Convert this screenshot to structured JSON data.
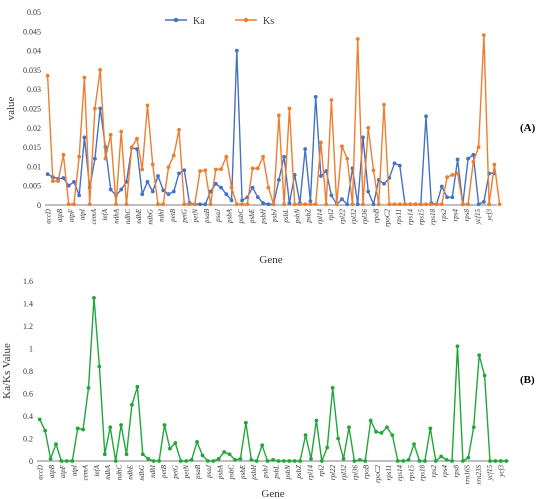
{
  "colors": {
    "ka": "#4472C4",
    "ks": "#ED7D31",
    "ratio": "#21A63A",
    "axis": "#7f7f7f"
  },
  "panelA": {
    "label": "(A)",
    "chart_data": {
      "type": "line",
      "xlabel": "Gene",
      "ylabel": "value",
      "ylim": [
        0,
        0.05
      ],
      "yticks": [
        "0",
        "0.005",
        "0.01",
        "0.015",
        "0.02",
        "0.025",
        "0.03",
        "0.035",
        "0.04",
        "0.045",
        "0.05"
      ],
      "legend_placement": "top",
      "tick_labels": [
        "accD",
        "atpB",
        "atpF",
        "atpI",
        "cemA",
        "infA",
        "ndhA",
        "ndhC",
        "ndhE",
        "ndhG",
        "ndhI",
        "petB",
        "petG",
        "petN",
        "psaB",
        "psaJ",
        "psbA",
        "psbC",
        "psbE",
        "psbH",
        "psbJ",
        "psbL",
        "psbN",
        "psbZ",
        "rpl14",
        "rpl2",
        "rpl22",
        "rpl32",
        "rpl36",
        "rpoB",
        "rpoC2",
        "rps11",
        "rps14",
        "rps15",
        "rps18",
        "rps2",
        "rps4",
        "rps8",
        "ycf15",
        "ycf3"
      ],
      "series": [
        {
          "name": "Ka",
          "values": [
            0.008,
            0.0072,
            0.0068,
            0.007,
            0.005,
            0.006,
            0.0025,
            0.0175,
            0.0045,
            0.012,
            0.025,
            0.015,
            0.004,
            0.0025,
            0.004,
            0.006,
            0.0148,
            0.0145,
            0.0028,
            0.006,
            0.0035,
            0.0075,
            0.0038,
            0.0028,
            0.0035,
            0.0082,
            0.009,
            0.0005,
            0.0002,
            0.0002,
            0.0002,
            0.0035,
            0.0055,
            0.0045,
            0.0028,
            0.0012,
            0.04,
            0.0012,
            0.002,
            0.0045,
            0.002,
            0.0005,
            0.0002,
            0.0002,
            0.0065,
            0.0125,
            0.0005,
            0.0078,
            0.0005,
            0.0145,
            0.001,
            0.028,
            0.0075,
            0.0088,
            0.0025,
            0.0002,
            0.0015,
            0.0002,
            0.0095,
            0.0002,
            0.0175,
            0.0035,
            0.0002,
            0.0065,
            0.0055,
            0.007,
            0.0108,
            0.0102,
            0.0002,
            0.0002,
            0.0002,
            0.0002,
            0.023,
            0.0005,
            0.0002,
            0.0048,
            0.002,
            0.002,
            0.0118,
            0.0002,
            0.012,
            0.013,
            0.0002,
            0.0008,
            0.0082,
            0.0082
          ]
        },
        {
          "name": "Ks",
          "values": [
            0.0335,
            0.0062,
            0.0062,
            0.013,
            0.0002,
            0.0002,
            0.0125,
            0.033,
            0.0002,
            0.025,
            0.035,
            0.012,
            0.0182,
            0.0002,
            0.019,
            0.0002,
            0.015,
            0.0172,
            0.0092,
            0.0258,
            0.0105,
            0.0002,
            0.0002,
            0.0098,
            0.0128,
            0.0195,
            0.0002,
            0.0002,
            0.0002,
            0.0088,
            0.009,
            0.0002,
            0.0092,
            0.0093,
            0.0125,
            0.0045,
            0.0002,
            0.0002,
            0.0002,
            0.0095,
            0.0095,
            0.0125,
            0.0045,
            0.0002,
            0.0232,
            0.0002,
            0.025,
            0.0002,
            0.0002,
            0.0002,
            0.0002,
            0.0002,
            0.0162,
            0.0002,
            0.0272,
            0.0002,
            0.0152,
            0.012,
            0.0002,
            0.043,
            0.0002,
            0.02,
            0.009,
            0.0002,
            0.026,
            0.0002,
            0.0002,
            0.0002,
            0.0002,
            0.0002,
            0.0002,
            0.0002,
            0.0002,
            0.0002,
            0.0002,
            0.0002,
            0.0072,
            0.0078,
            0.0082,
            0.0002,
            0.0002,
            0.0112,
            0.015,
            0.044,
            0.0002,
            0.0105,
            0.0002
          ]
        }
      ]
    }
  },
  "panelB": {
    "label": "(B)",
    "chart_data": {
      "type": "line",
      "xlabel": "Gene",
      "ylabel": "Ka/Ks Value",
      "ylim": [
        0,
        1.6
      ],
      "yticks": [
        "0",
        "0.2",
        "0.4",
        "0.6",
        "0.8",
        "1",
        "1.2",
        "1.4",
        "1.6"
      ],
      "tick_labels": [
        "accD",
        "atpB",
        "atpF",
        "atpI",
        "cemA",
        "infA",
        "ndhA",
        "ndhC",
        "ndhE",
        "ndhG",
        "ndhI",
        "petB",
        "petG",
        "petN",
        "psaB",
        "psaJ",
        "psbA",
        "psbC",
        "psbE",
        "psbH",
        "psbJ",
        "psbL",
        "psbN",
        "psbZ",
        "rpl14",
        "rpl2",
        "rpl22",
        "rpl32",
        "rpl36",
        "rpoB",
        "rpoC2",
        "rps11",
        "rps14",
        "rps15",
        "rps18",
        "rps2",
        "rps4",
        "rps8",
        "rrn16S",
        "rrn23S",
        "ycf15",
        "ycf3"
      ],
      "series": [
        {
          "name": "Ka/Ks",
          "values": [
            0.37,
            0.27,
            0.02,
            0.15,
            0,
            0,
            0,
            0.29,
            0.28,
            0.65,
            1.45,
            0.84,
            0.06,
            0.3,
            0,
            0.32,
            0.06,
            0.5,
            0.66,
            0.06,
            0.02,
            0,
            0,
            0.32,
            0.11,
            0.16,
            0,
            0,
            0.01,
            0.17,
            0.05,
            0,
            0,
            0.02,
            0.08,
            0.06,
            0.01,
            0.02,
            0.34,
            0.01,
            0,
            0.14,
            0,
            0.01,
            0,
            0,
            0,
            0,
            0,
            0.23,
            0.02,
            0.36,
            0,
            0.12,
            0.65,
            0.2,
            0.02,
            0.3,
            0,
            0.01,
            0,
            0.36,
            0.26,
            0.25,
            0.3,
            0.23,
            0,
            0,
            0.01,
            0.15,
            0,
            0,
            0.29,
            0,
            0.04,
            0.01,
            0,
            1.02,
            0,
            0.03,
            0.3,
            0.94,
            0.76,
            0,
            0,
            0,
            0
          ]
        }
      ]
    }
  }
}
